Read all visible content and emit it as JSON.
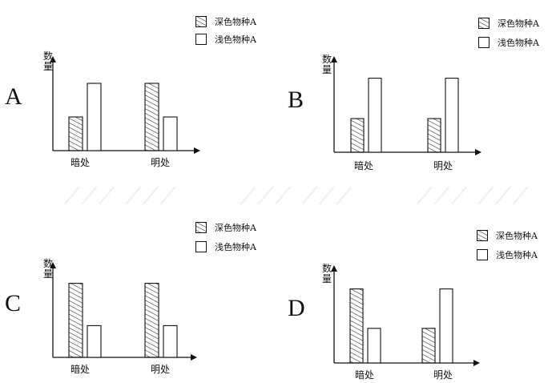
{
  "colors": {
    "line": "#111111",
    "hatch": "#222222",
    "fill": "#ffffff"
  },
  "panels": [
    {
      "letter": "A",
      "ylabel": "数量",
      "legend": [
        "深色物种A",
        "浅色物种A"
      ]
    },
    {
      "letter": "B",
      "ylabel": "数量",
      "legend": [
        "深色物种A",
        "浅色物种A"
      ]
    },
    {
      "letter": "C",
      "ylabel": "数量",
      "legend": [
        "深色物种A",
        "浅色物种A"
      ]
    },
    {
      "letter": "D",
      "ylabel": "数量",
      "legend": [
        "深色物种A",
        "浅色物种A"
      ]
    }
  ],
  "chart_data": [
    {
      "type": "bar",
      "title": "",
      "xlabel": "",
      "ylabel": "数量",
      "grid": false,
      "legend": "top-right",
      "categories": [
        "暗处",
        "明处"
      ],
      "ylim": [
        0,
        100
      ],
      "series": [
        {
          "name": "深色物种A",
          "values": [
            35,
            70
          ]
        },
        {
          "name": "浅色物种A",
          "values": [
            70,
            35
          ]
        }
      ]
    },
    {
      "type": "bar",
      "title": "",
      "xlabel": "",
      "ylabel": "数量",
      "grid": false,
      "legend": "top-right",
      "categories": [
        "暗处",
        "明处"
      ],
      "ylim": [
        0,
        100
      ],
      "series": [
        {
          "name": "深色物种A",
          "values": [
            35,
            35
          ]
        },
        {
          "name": "浅色物种A",
          "values": [
            77,
            77
          ]
        }
      ]
    },
    {
      "type": "bar",
      "title": "",
      "xlabel": "",
      "ylabel": "数量",
      "grid": false,
      "legend": "top-right",
      "categories": [
        "暗处",
        "明处"
      ],
      "ylim": [
        0,
        100
      ],
      "series": [
        {
          "name": "深色物种A",
          "values": [
            77,
            77
          ]
        },
        {
          "name": "浅色物种A",
          "values": [
            33,
            33
          ]
        }
      ]
    },
    {
      "type": "bar",
      "title": "",
      "xlabel": "",
      "ylabel": "数量",
      "grid": false,
      "legend": "top-right",
      "categories": [
        "暗处",
        "明处"
      ],
      "ylim": [
        0,
        100
      ],
      "series": [
        {
          "name": "深色物种A",
          "values": [
            77,
            36
          ]
        },
        {
          "name": "浅色物种A",
          "values": [
            36,
            77
          ]
        }
      ]
    }
  ]
}
